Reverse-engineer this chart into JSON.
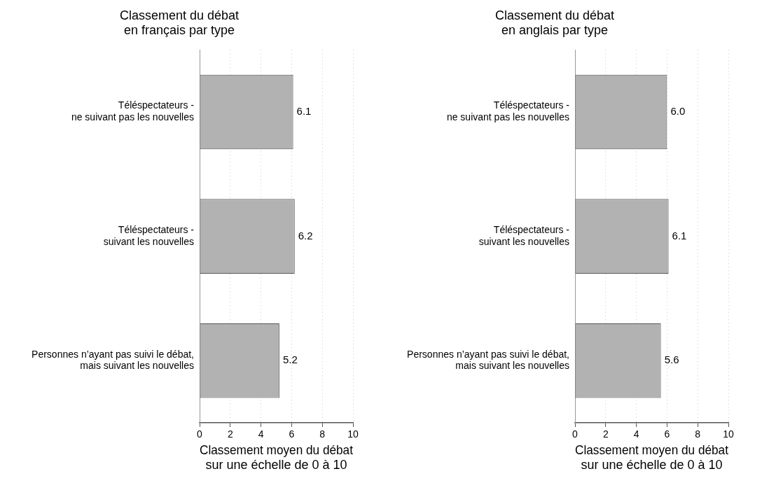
{
  "chart_data": [
    {
      "type": "bar",
      "orientation": "horizontal",
      "title": "Classement du débat\nen français par type",
      "xlabel": "Classement moyen du débat\nsur une échelle de 0 à 10",
      "categories": [
        "Téléspectateurs -\nne suivant pas les nouvelles",
        "Téléspectateurs -\nsuivant les nouvelles",
        "Personnes n’ayant pas suivi le débat,\nmais suivant les nouvelles"
      ],
      "values": [
        6.1,
        6.2,
        5.2
      ],
      "value_labels": [
        "6.1",
        "6.2",
        "5.2"
      ],
      "color": "#b2b2b2",
      "xlim": [
        0,
        10
      ],
      "xticks": [
        0,
        2,
        4,
        6,
        8,
        10
      ],
      "grid": "x",
      "legend": false
    },
    {
      "type": "bar",
      "orientation": "horizontal",
      "title": "Classement du débat\nen anglais par type",
      "xlabel": "Classement moyen du débat\nsur une échelle de 0 à 10",
      "categories": [
        "Téléspectateurs -\nne suivant pas les nouvelles",
        "Téléspectateurs -\nsuivant les nouvelles",
        "Personnes n’ayant pas suivi le débat,\nmais suivant les nouvelles"
      ],
      "values": [
        6.0,
        6.1,
        5.6
      ],
      "value_labels": [
        "6.0",
        "6.1",
        "5.6"
      ],
      "color": "#b2b2b2",
      "xlim": [
        0,
        10
      ],
      "xticks": [
        0,
        2,
        4,
        6,
        8,
        10
      ],
      "grid": "x",
      "legend": false
    }
  ]
}
